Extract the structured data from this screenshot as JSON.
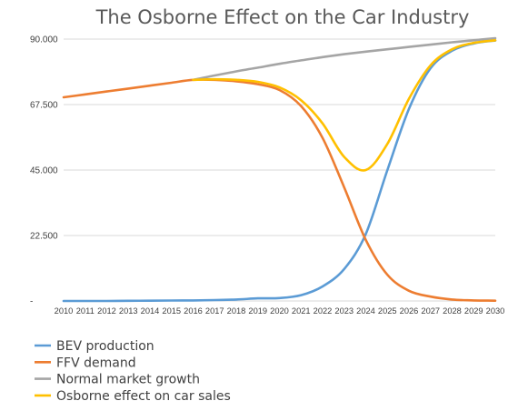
{
  "chart_data": {
    "type": "line",
    "title": "The Osborne Effect on the Car Industry",
    "x": [
      "2010",
      "2011",
      "2012",
      "2013",
      "2014",
      "2015",
      "2016",
      "2017",
      "2018",
      "2019",
      "2020",
      "2021",
      "2022",
      "2023",
      "2024",
      "2025",
      "2026",
      "2027",
      "2028",
      "2029",
      "2030"
    ],
    "yticks": [
      "-",
      "22.500",
      "45.000",
      "67.500",
      "90.000"
    ],
    "ylim": [
      0,
      90000
    ],
    "grid": true,
    "legend_position": "bottom-left",
    "series": [
      {
        "name": "BEV production",
        "color": "#5b9bd5",
        "values": [
          0,
          0,
          0,
          50,
          100,
          150,
          200,
          300,
          500,
          900,
          1000,
          2000,
          5000,
          11000,
          23000,
          45000,
          66000,
          80000,
          86000,
          88500,
          89500
        ]
      },
      {
        "name": "FFV demand",
        "color": "#ed7d31",
        "values": [
          70000,
          71000,
          72000,
          73000,
          74000,
          75000,
          76000,
          76000,
          75500,
          74500,
          72500,
          67000,
          56000,
          39000,
          21000,
          9000,
          3500,
          1500,
          500,
          200,
          100
        ]
      },
      {
        "name": "Normal market growth",
        "color": "#a5a5a5",
        "values": [
          null,
          null,
          null,
          null,
          null,
          null,
          76000,
          77500,
          78900,
          80200,
          81500,
          82700,
          83800,
          84800,
          85700,
          86500,
          87300,
          88100,
          88900,
          89600,
          90300
        ]
      },
      {
        "name": "Osborne effect on car sales",
        "color": "#ffc000",
        "values": [
          null,
          null,
          null,
          null,
          null,
          null,
          76000,
          76200,
          76000,
          75300,
          73400,
          69000,
          61000,
          49500,
          45000,
          54000,
          69500,
          81000,
          86500,
          88700,
          89600
        ]
      }
    ]
  }
}
